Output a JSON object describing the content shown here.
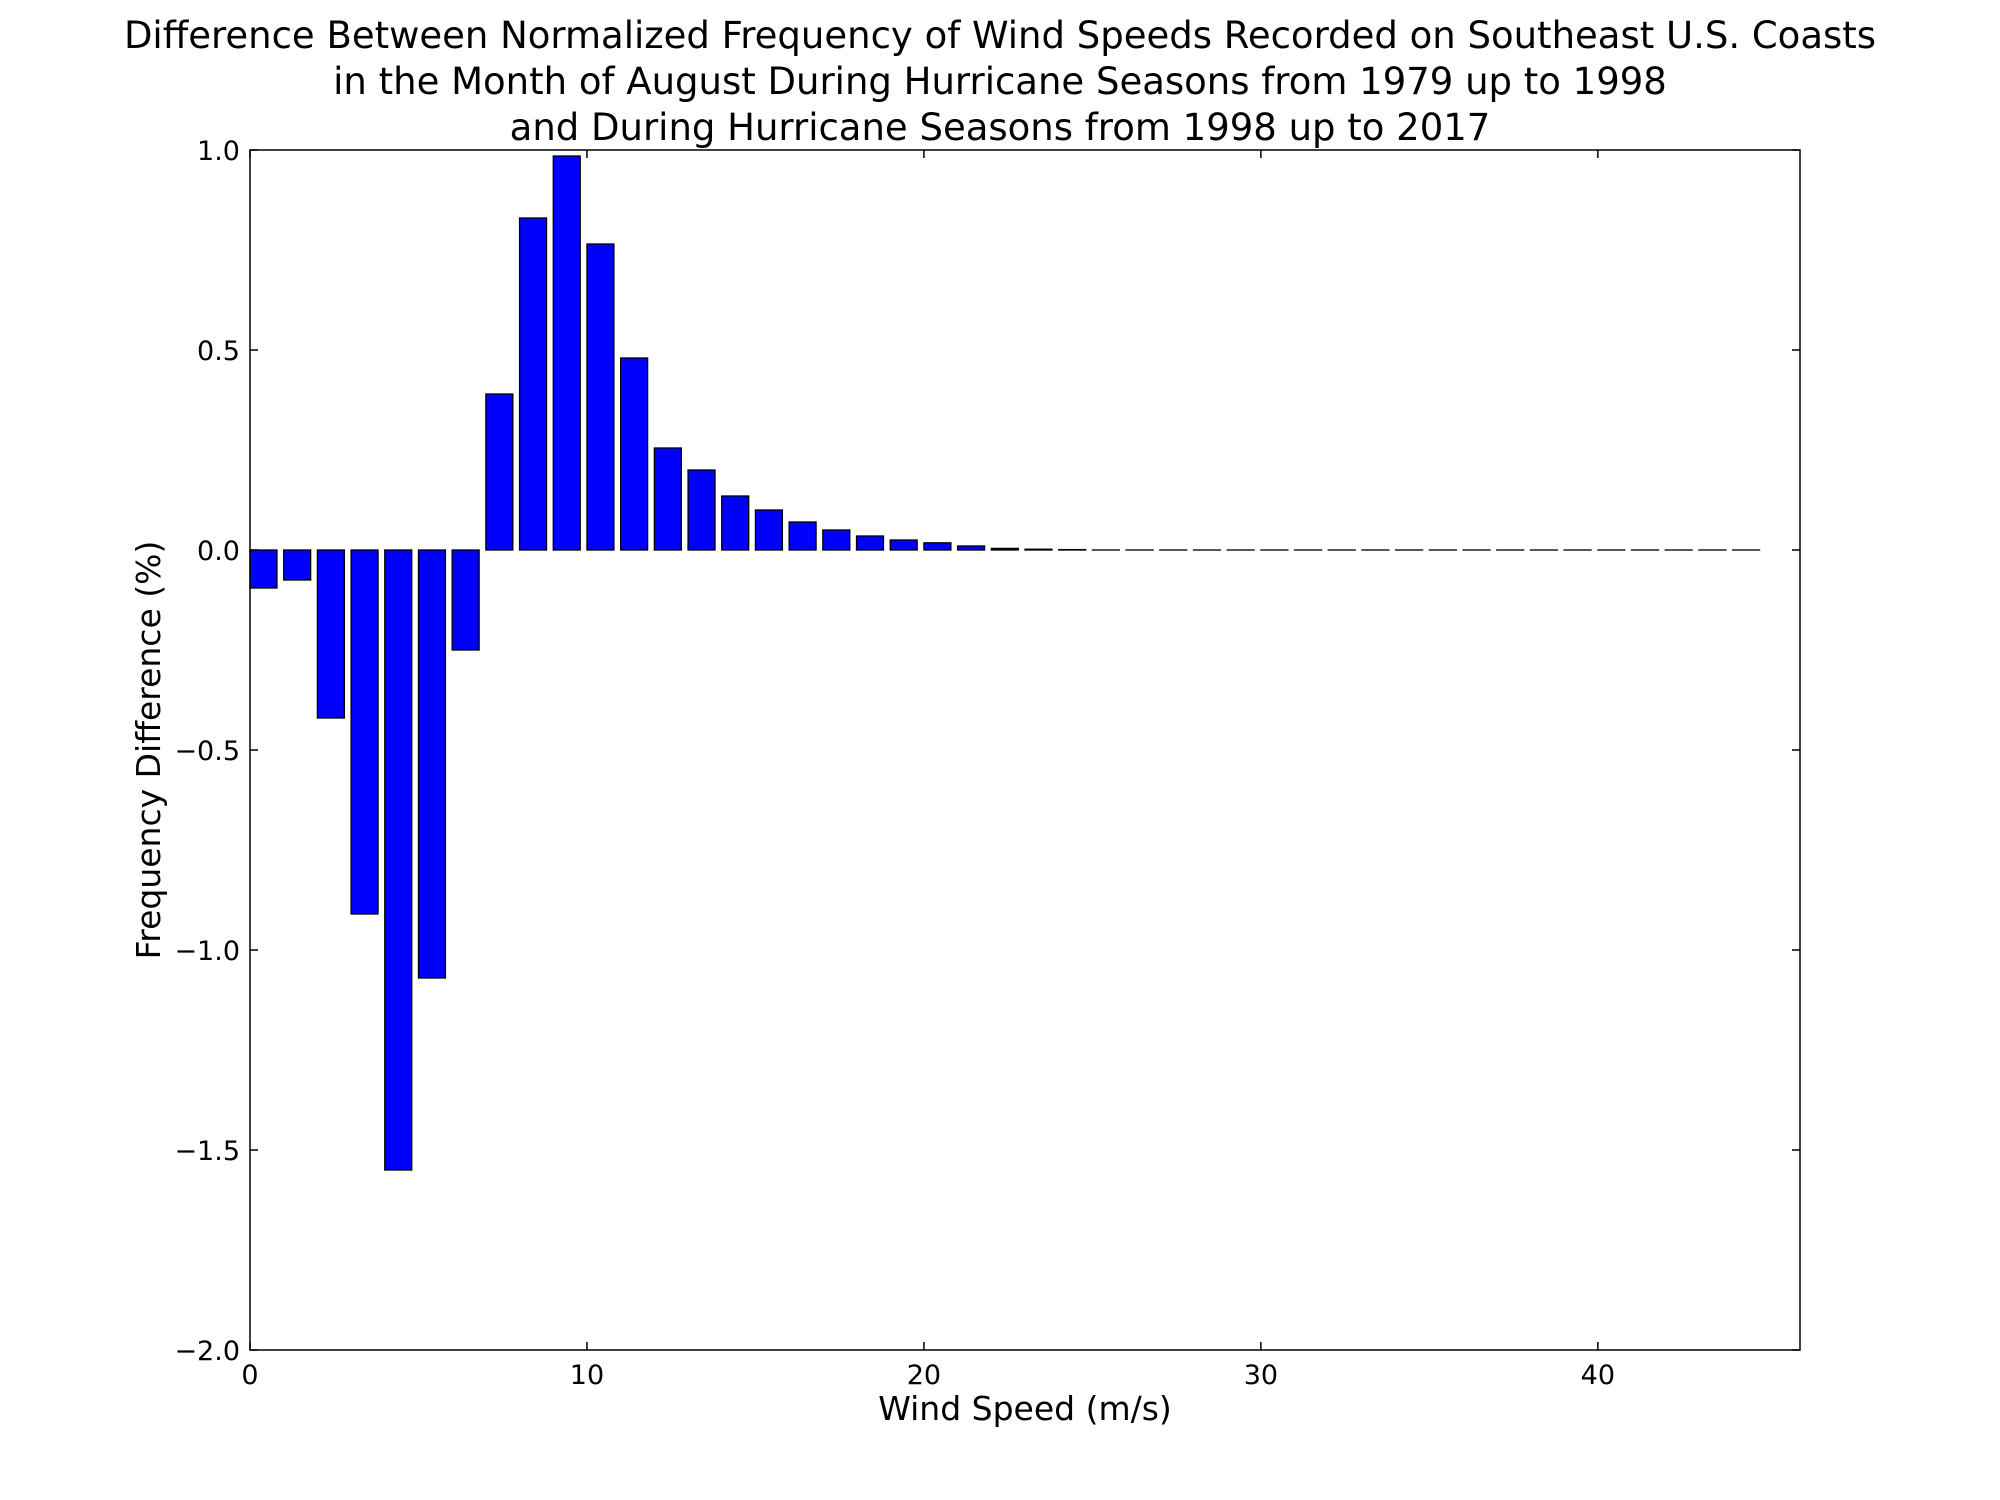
{
  "chart_data": {
    "type": "bar",
    "title_lines": [
      "Difference Between Normalized Frequency of Wind Speeds Recorded on Southeast U.S. Coasts",
      "in the Month of August During Hurricane Seasons from 1979 up to 1998",
      "and During Hurricane Seasons from 1998 up to 2017"
    ],
    "xlabel": "Wind Speed (m/s)",
    "ylabel": "Frequency Difference (%)",
    "xlim": [
      0,
      46
    ],
    "ylim": [
      -2.0,
      1.0
    ],
    "xticks": [
      0,
      10,
      20,
      30,
      40
    ],
    "xtick_labels": [
      "0",
      "10",
      "20",
      "30",
      "40"
    ],
    "yticks": [
      1.0,
      0.5,
      0.0,
      -0.5,
      -1.0,
      -1.5,
      -2.0
    ],
    "ytick_labels": [
      "1.0",
      "0.5",
      "0.0",
      "−0.5",
      "−1.0",
      "−1.5",
      "−2.0"
    ],
    "grid": false,
    "bar_color": "#0000ff",
    "edge_color": "#000000",
    "bar_width": 0.8,
    "x": [
      0,
      1,
      2,
      3,
      4,
      5,
      6,
      7,
      8,
      9,
      10,
      11,
      12,
      13,
      14,
      15,
      16,
      17,
      18,
      19,
      20,
      21,
      22,
      23,
      24,
      25,
      26,
      27,
      28,
      29,
      30,
      31,
      32,
      33,
      34,
      35,
      36,
      37,
      38,
      39,
      40,
      41,
      42,
      43,
      44
    ],
    "values": [
      -0.095,
      -0.075,
      -0.42,
      -0.91,
      -1.55,
      -1.07,
      -0.25,
      0.39,
      0.83,
      0.985,
      0.765,
      0.48,
      0.255,
      0.2,
      0.135,
      0.1,
      0.07,
      0.05,
      0.035,
      0.025,
      0.018,
      0.01,
      0.004,
      0.002,
      0.001,
      0.0,
      0.0,
      0.0,
      0.0,
      0.0,
      0.0,
      0.0,
      0.0,
      0.0,
      0.0,
      0.0,
      0.0,
      0.0,
      0.0,
      0.0,
      0.0,
      0.0,
      0.0,
      0.0,
      0.0
    ]
  }
}
